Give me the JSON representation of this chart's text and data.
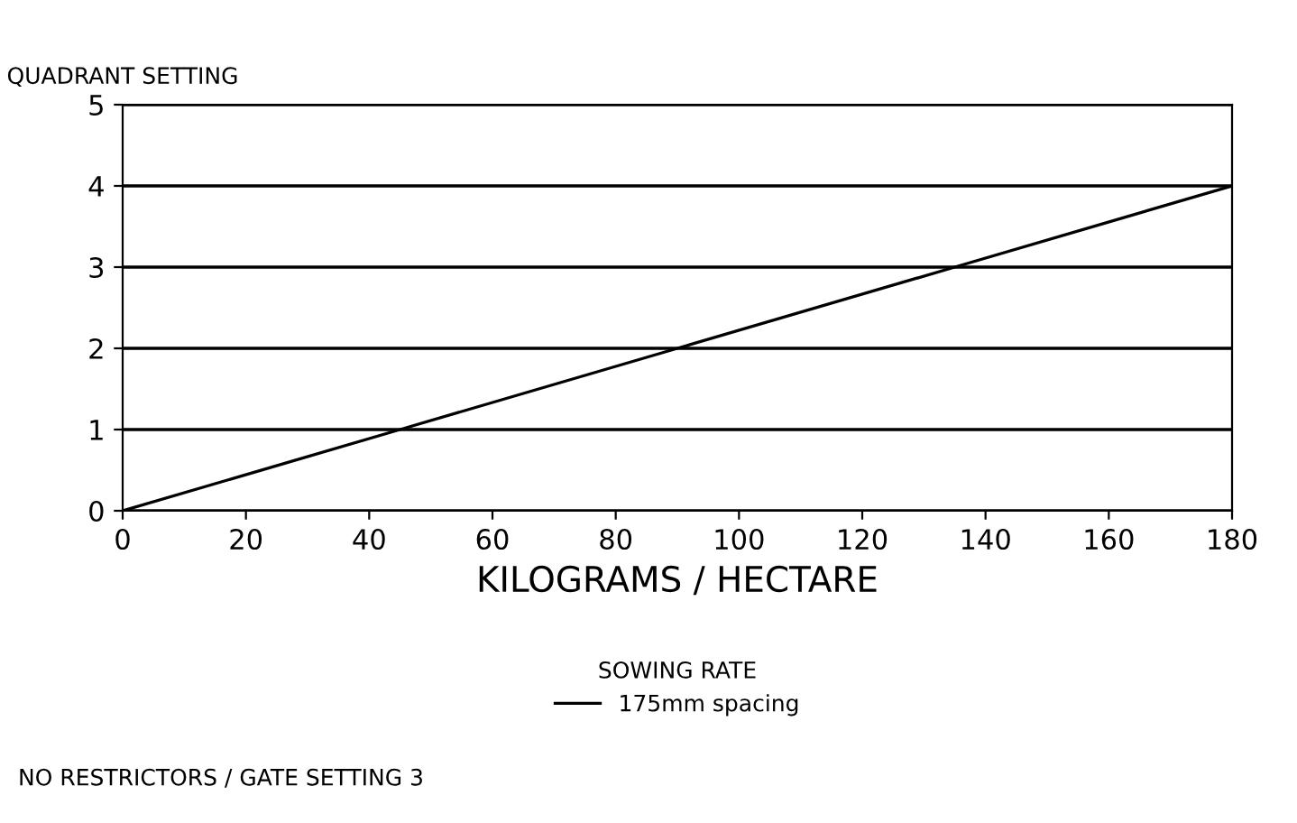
{
  "chart_data": {
    "type": "line",
    "ylabel": "QUADRANT SETTING",
    "xlabel": "KILOGRAMS / HECTARE",
    "legend_title": "SOWING RATE",
    "annotations": [
      "NO RESTRICTORS / GATE SETTING 3"
    ],
    "x": [
      0,
      45,
      90,
      135,
      180
    ],
    "series": [
      {
        "name": "175mm spacing",
        "color": "#000000",
        "values": [
          0,
          1,
          2,
          3,
          4
        ]
      }
    ],
    "xlim": [
      0,
      180
    ],
    "ylim": [
      0,
      5
    ],
    "xticks": [
      0,
      20,
      40,
      60,
      80,
      100,
      120,
      140,
      160,
      180
    ],
    "yticks": [
      0,
      1,
      2,
      3,
      4,
      5
    ],
    "grid": "y",
    "legend": "bottom",
    "line_style": "solid"
  }
}
